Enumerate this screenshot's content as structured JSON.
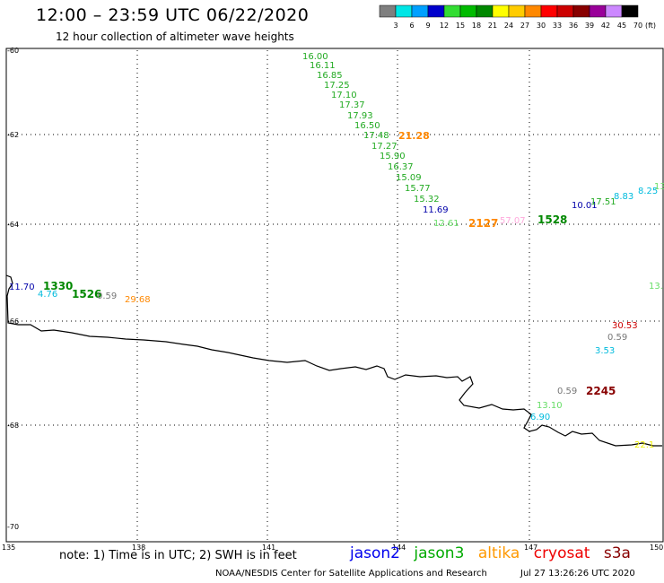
{
  "header": {
    "title": "12:00 – 23:59 UTC 06/22/2020",
    "subtitle": "12 hour collection of altimeter wave heights"
  },
  "scale": {
    "unit": "(ft)",
    "bins": [
      {
        "label": "3",
        "color": "#7f7f7f"
      },
      {
        "label": "6",
        "color": "#00e6e6"
      },
      {
        "label": "9",
        "color": "#00a0ff"
      },
      {
        "label": "12",
        "color": "#0000cc"
      },
      {
        "label": "15",
        "color": "#33dd33"
      },
      {
        "label": "18",
        "color": "#00bb00"
      },
      {
        "label": "21",
        "color": "#008800"
      },
      {
        "label": "24",
        "color": "#ffff00"
      },
      {
        "label": "27",
        "color": "#ffcc00"
      },
      {
        "label": "30",
        "color": "#ff8800"
      },
      {
        "label": "33",
        "color": "#ff0000"
      },
      {
        "label": "36",
        "color": "#cc0000"
      },
      {
        "label": "39",
        "color": "#880000"
      },
      {
        "label": "42",
        "color": "#990099"
      },
      {
        "label": "45",
        "color": "#cc88ff"
      },
      {
        "label": "70",
        "color": "#000000"
      }
    ]
  },
  "axes": {
    "lat_labels": [
      "-60",
      "-62",
      "-64",
      "-66",
      "-68",
      "-70"
    ],
    "lon_labels": [
      "135",
      "138",
      "141",
      "144",
      "147",
      "150"
    ]
  },
  "observations": [
    {
      "text": "16.00",
      "color": "#22aa22"
    },
    {
      "text": "16.11",
      "color": "#22aa22"
    },
    {
      "text": "16.85",
      "color": "#22aa22"
    },
    {
      "text": "17.25",
      "color": "#22aa22"
    },
    {
      "text": "17.10",
      "color": "#22aa22"
    },
    {
      "text": "17.37",
      "color": "#22aa22"
    },
    {
      "text": "17.93",
      "color": "#22aa22"
    },
    {
      "text": "16.50",
      "color": "#22aa22"
    },
    {
      "text": "17.48",
      "color": "#22aa22"
    },
    {
      "text": "21.28",
      "color": "#ff8800"
    },
    {
      "text": "17.27",
      "color": "#22aa22"
    },
    {
      "text": "15.90",
      "color": "#22aa22"
    },
    {
      "text": "16.37",
      "color": "#22aa22"
    },
    {
      "text": "15.09",
      "color": "#22aa22"
    },
    {
      "text": "15.77",
      "color": "#22aa22"
    },
    {
      "text": "15.32",
      "color": "#22aa22"
    },
    {
      "text": "11.69",
      "color": "#0000aa"
    },
    {
      "text": "12.61",
      "color": "#66dd66"
    },
    {
      "text": "2127",
      "color": "#ff8800"
    },
    {
      "text": "57.07",
      "color": "#ffaadd"
    },
    {
      "text": "1528",
      "color": "#008800"
    },
    {
      "text": "10.01",
      "color": "#0000aa"
    },
    {
      "text": "17.51",
      "color": "#22aa22"
    },
    {
      "text": "8.83",
      "color": "#00bbdd"
    },
    {
      "text": "8.25",
      "color": "#00bbdd"
    },
    {
      "text": "13",
      "color": "#66dd66"
    },
    {
      "text": "11.70",
      "color": "#0000aa"
    },
    {
      "text": "1330",
      "color": "#008800"
    },
    {
      "text": "4.76",
      "color": "#00bbdd"
    },
    {
      "text": "1526",
      "color": "#008800"
    },
    {
      "text": "0.59",
      "color": "#777777"
    },
    {
      "text": "29.68",
      "color": "#ff8800"
    },
    {
      "text": "13.",
      "color": "#66dd66"
    },
    {
      "text": "30.53",
      "color": "#cc0000"
    },
    {
      "text": "0.59",
      "color": "#777777"
    },
    {
      "text": "3.53",
      "color": "#00bbdd"
    },
    {
      "text": "0.59",
      "color": "#777777"
    },
    {
      "text": "2245",
      "color": "#880000"
    },
    {
      "text": "13.10",
      "color": "#66dd66"
    },
    {
      "text": "6.90",
      "color": "#00bbdd"
    },
    {
      "text": "22.1",
      "color": "#eeee00"
    }
  ],
  "footer": {
    "note": "note: 1) Time is in UTC; 2) SWH is in feet",
    "satellites": [
      {
        "name": "jason2",
        "color": "#0000ee"
      },
      {
        "name": "jason3",
        "color": "#00aa00"
      },
      {
        "name": "altika",
        "color": "#ff9900"
      },
      {
        "name": "cryosat",
        "color": "#ee0000"
      },
      {
        "name": "s3a",
        "color": "#880000"
      }
    ],
    "credit": "NOAA/NESDIS Center for Satellite Applications and Research",
    "timestamp": "Jul 27 13:26:26 UTC 2020"
  }
}
